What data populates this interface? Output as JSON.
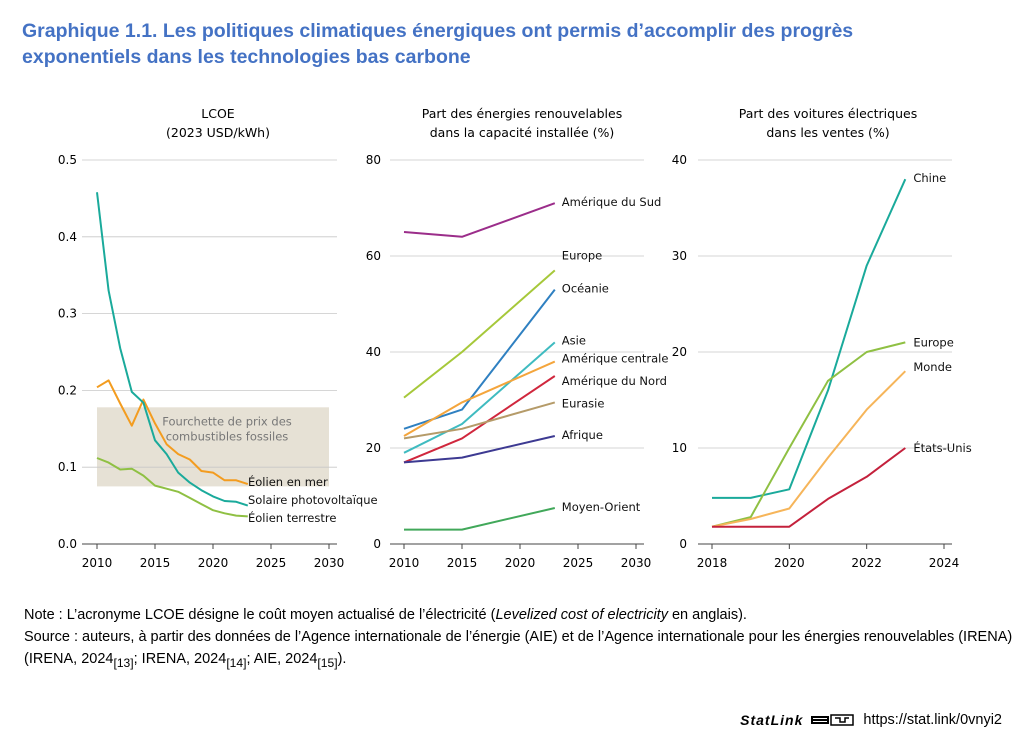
{
  "title_lines": [
    "Graphique 1.1. Les politiques climatiques énergiques ont permis d’accomplir des progrès",
    "exponentiels dans les technologies bas carbone"
  ],
  "chart_data": [
    {
      "type": "line",
      "title_lines": [
        "LCOE",
        "(2023 USD/kWh)"
      ],
      "xlim": [
        2010,
        2030
      ],
      "ylim": [
        0,
        0.5
      ],
      "xticks": [
        "2010",
        "2015",
        "2020",
        "2025",
        "2030"
      ],
      "yticks": [
        "0.0",
        "0.1",
        "0.2",
        "0.3",
        "0.4",
        "0.5"
      ],
      "grid": true,
      "band": {
        "label_lines": [
          "Fourchette de prix des",
          "combustibles fossiles"
        ],
        "x": [
          2010,
          2030
        ],
        "y": [
          0.075,
          0.178
        ],
        "color": "#e6e1d5"
      },
      "series": [
        {
          "name": "Éolien en mer",
          "color": "#f39c1f",
          "x": [
            2010,
            2011,
            2012,
            2013,
            2014,
            2015,
            2016,
            2017,
            2018,
            2019,
            2020,
            2021,
            2022,
            2023
          ],
          "values": [
            0.204,
            0.213,
            0.183,
            0.154,
            0.188,
            0.157,
            0.13,
            0.117,
            0.11,
            0.095,
            0.093,
            0.083,
            0.083,
            0.078
          ]
        },
        {
          "name": "Solaire photovoltaïque",
          "color": "#1aaa9b",
          "x": [
            2010,
            2011,
            2012,
            2013,
            2014,
            2015,
            2016,
            2017,
            2018,
            2019,
            2020,
            2021,
            2022,
            2023
          ],
          "values": [
            0.458,
            0.33,
            0.255,
            0.198,
            0.184,
            0.135,
            0.117,
            0.093,
            0.08,
            0.07,
            0.062,
            0.056,
            0.055,
            0.05
          ]
        },
        {
          "name": "Éolien terrestre",
          "color": "#8fc043",
          "x": [
            2010,
            2011,
            2012,
            2013,
            2014,
            2015,
            2016,
            2017,
            2018,
            2019,
            2020,
            2021,
            2022,
            2023
          ],
          "values": [
            0.112,
            0.106,
            0.097,
            0.098,
            0.089,
            0.076,
            0.072,
            0.068,
            0.06,
            0.052,
            0.044,
            0.04,
            0.037,
            0.036
          ]
        }
      ]
    },
    {
      "type": "line",
      "title_lines": [
        "Part des énergies renouvelables",
        "dans la capacité installée (%)"
      ],
      "xlim": [
        2010,
        2030
      ],
      "ylim": [
        0,
        80
      ],
      "xticks": [
        "2010",
        "2015",
        "2020",
        "2025",
        "2030"
      ],
      "yticks": [
        "0",
        "20",
        "40",
        "60",
        "80"
      ],
      "grid": true,
      "series": [
        {
          "name": "Amérique du Sud",
          "color": "#9b2d8a",
          "x": [
            2010,
            2015,
            2023
          ],
          "values": [
            65,
            64,
            71
          ]
        },
        {
          "name": "Europe",
          "color": "#a6c83a",
          "x": [
            2010,
            2015,
            2023
          ],
          "values": [
            30.5,
            40,
            57
          ]
        },
        {
          "name": "Océanie",
          "color": "#2f80c1",
          "x": [
            2010,
            2015,
            2023
          ],
          "values": [
            24,
            28,
            53
          ]
        },
        {
          "name": "Asie",
          "color": "#3fbbc0",
          "x": [
            2010,
            2015,
            2023
          ],
          "values": [
            19,
            25,
            42
          ]
        },
        {
          "name": "Amérique centrale",
          "color": "#f4a53c",
          "x": [
            2010,
            2015,
            2023
          ],
          "values": [
            22.5,
            29.5,
            38
          ]
        },
        {
          "name": "Amérique du Nord",
          "color": "#d0273d",
          "x": [
            2010,
            2015,
            2023
          ],
          "values": [
            17,
            22,
            35
          ]
        },
        {
          "name": "Eurasie",
          "color": "#b59b69",
          "x": [
            2010,
            2015,
            2023
          ],
          "values": [
            22,
            24,
            29.5
          ]
        },
        {
          "name": "Afrique",
          "color": "#3d3a92",
          "x": [
            2010,
            2015,
            2023
          ],
          "values": [
            17,
            18,
            22.5
          ]
        },
        {
          "name": "Moyen-Orient",
          "color": "#41a85a",
          "x": [
            2010,
            2015,
            2023
          ],
          "values": [
            3,
            3,
            7.5
          ]
        }
      ]
    },
    {
      "type": "line",
      "title_lines": [
        "Part des voitures électriques",
        "dans les ventes (%)"
      ],
      "xlim": [
        2018,
        2024
      ],
      "ylim": [
        0,
        40
      ],
      "xticks": [
        "2018",
        "2020",
        "2022",
        "2024"
      ],
      "yticks": [
        "0",
        "10",
        "20",
        "30",
        "40"
      ],
      "grid": true,
      "series": [
        {
          "name": "Chine",
          "color": "#1aaa9b",
          "x": [
            2018,
            2019,
            2020,
            2021,
            2022,
            2023
          ],
          "values": [
            4.8,
            4.8,
            5.7,
            16,
            29,
            38
          ]
        },
        {
          "name": "Europe",
          "color": "#8fc043",
          "x": [
            2018,
            2019,
            2020,
            2021,
            2022,
            2023
          ],
          "values": [
            1.8,
            2.8,
            10,
            17,
            20,
            21
          ]
        },
        {
          "name": "Monde",
          "color": "#f6b55a",
          "x": [
            2018,
            2019,
            2020,
            2021,
            2022,
            2023
          ],
          "values": [
            1.8,
            2.6,
            3.7,
            9,
            14,
            18
          ]
        },
        {
          "name": "États-Unis",
          "color": "#c4213c",
          "x": [
            2018,
            2019,
            2020,
            2021,
            2022,
            2023
          ],
          "values": [
            1.8,
            1.8,
            1.8,
            4.7,
            7,
            10
          ]
        }
      ]
    }
  ],
  "notes": {
    "note_prefix": "Note : L’acronyme LCOE désigne le coût moyen actualisé de l’électricité (",
    "note_italic": "Levelized cost of electricity",
    "note_suffix": " en anglais).",
    "source_prefix": "Source : auteurs, à partir des données de l’Agence internationale de l’énergie (AIE) et de l’Agence internationale pour les énergies renouvelables (IRENA) (IRENA, 2024",
    "ref1": "[13]",
    "sep1": "; IRENA, 2024",
    "ref2": "[14]",
    "sep2": "; AIE, 2024",
    "ref3": "[15]",
    "source_suffix": ")."
  },
  "statlink": {
    "brand": "StatLink",
    "url": "https://stat.link/0vnyi2"
  }
}
